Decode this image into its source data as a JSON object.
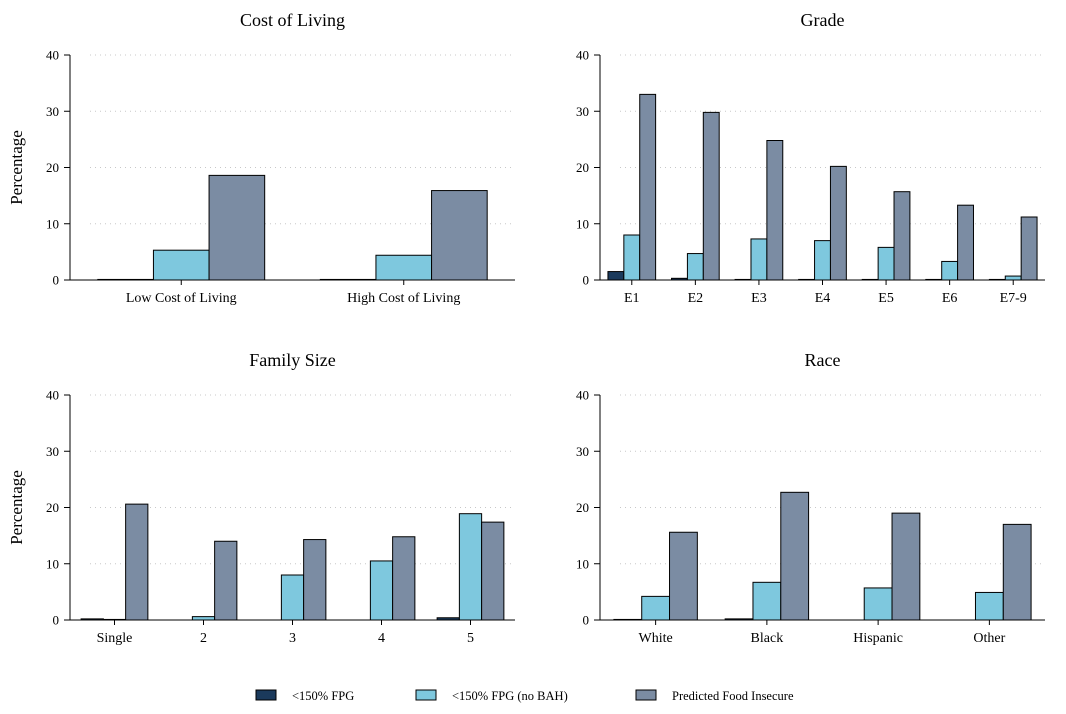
{
  "colors": {
    "fpg": "#1b3a5c",
    "fpg_no_bah": "#7ec8de",
    "predicted": "#7b8ca3",
    "stroke": "#000000",
    "grid": "#c8c8c8"
  },
  "legend": {
    "items": [
      {
        "label": "<150% FPG",
        "color": "#1b3a5c"
      },
      {
        "label": "<150% FPG (no BAH)",
        "color": "#7ec8de"
      },
      {
        "label": "Predicted Food Insecure",
        "color": "#7b8ca3"
      }
    ]
  },
  "chart_data": [
    {
      "type": "bar",
      "title": "Cost of Living",
      "ylabel": "Percentage",
      "ylim": [
        0,
        40
      ],
      "yticks": [
        0,
        10,
        20,
        30,
        40
      ],
      "grid": "dotted horizontal",
      "categories": [
        "Low Cost of Living",
        "High Cost of Living"
      ],
      "series": [
        {
          "name": "<150% FPG",
          "values": [
            0.1,
            0.1
          ]
        },
        {
          "name": "<150% FPG (no BAH)",
          "values": [
            5.3,
            4.4
          ]
        },
        {
          "name": "Predicted Food Insecure",
          "values": [
            18.6,
            15.9
          ]
        }
      ]
    },
    {
      "type": "bar",
      "title": "Grade",
      "ylabel": "",
      "ylim": [
        0,
        40
      ],
      "yticks": [
        0,
        10,
        20,
        30,
        40
      ],
      "grid": "dotted horizontal",
      "categories": [
        "E1",
        "E2",
        "E3",
        "E4",
        "E5",
        "E6",
        "E7-9"
      ],
      "series": [
        {
          "name": "<150% FPG",
          "values": [
            1.5,
            0.3,
            0.1,
            0.1,
            0.1,
            0.1,
            0.1
          ]
        },
        {
          "name": "<150% FPG (no BAH)",
          "values": [
            8.0,
            4.7,
            7.3,
            7.0,
            5.8,
            3.3,
            0.7
          ]
        },
        {
          "name": "Predicted Food Insecure",
          "values": [
            33.0,
            29.8,
            24.8,
            20.2,
            15.7,
            13.3,
            11.2
          ]
        }
      ]
    },
    {
      "type": "bar",
      "title": "Family Size",
      "ylabel": "Percentage",
      "ylim": [
        0,
        40
      ],
      "yticks": [
        0,
        10,
        20,
        30,
        40
      ],
      "grid": "dotted horizontal",
      "categories": [
        "Single",
        "2",
        "3",
        "4",
        "5"
      ],
      "series": [
        {
          "name": "<150% FPG",
          "values": [
            0.2,
            0,
            0,
            0,
            0.4
          ]
        },
        {
          "name": "<150% FPG (no BAH)",
          "values": [
            0.1,
            0.6,
            8.0,
            10.5,
            18.9
          ]
        },
        {
          "name": "Predicted Food Insecure",
          "values": [
            20.6,
            14.0,
            14.3,
            14.8,
            17.4
          ]
        }
      ]
    },
    {
      "type": "bar",
      "title": "Race",
      "ylabel": "",
      "ylim": [
        0,
        40
      ],
      "yticks": [
        0,
        10,
        20,
        30,
        40
      ],
      "grid": "dotted horizontal",
      "categories": [
        "White",
        "Black",
        "Hispanic",
        "Other"
      ],
      "series": [
        {
          "name": "<150% FPG",
          "values": [
            0.1,
            0.2,
            0,
            0
          ]
        },
        {
          "name": "<150% FPG (no BAH)",
          "values": [
            4.2,
            6.7,
            5.7,
            4.9
          ]
        },
        {
          "name": "Predicted Food Insecure",
          "values": [
            15.6,
            22.7,
            19.0,
            17.0
          ]
        }
      ]
    }
  ]
}
